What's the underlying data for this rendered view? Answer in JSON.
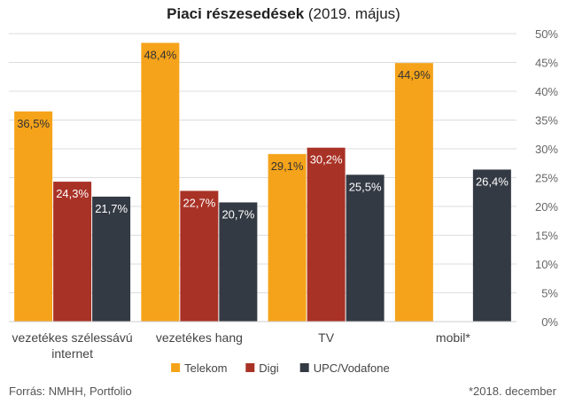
{
  "title_bold": "Piaci részesedések",
  "title_rest": " (2019. május)",
  "source": "Forrás: NMHH, Portfolio",
  "footnote": "*2018. december",
  "chart_data": {
    "type": "bar",
    "title": "Piaci részesedések (2019. május)",
    "categories": [
      [
        "vezetékes szélessávú",
        "internet"
      ],
      [
        "vezetékes hang"
      ],
      [
        "TV"
      ],
      [
        "mobil*"
      ]
    ],
    "series": [
      {
        "name": "Telekom",
        "color": "#f5a31a",
        "values": [
          36.5,
          48.4,
          29.1,
          44.9
        ],
        "labels": [
          "36,5%",
          "48,4%",
          "29,1%",
          "44,9%"
        ]
      },
      {
        "name": "Digi",
        "color": "#a93226",
        "values": [
          24.3,
          22.7,
          30.2,
          null
        ],
        "labels": [
          "24,3%",
          "22,7%",
          "30,2%",
          ""
        ]
      },
      {
        "name": "UPC/Vodafone",
        "color": "#343a44",
        "values": [
          21.7,
          20.7,
          25.5,
          26.4
        ],
        "labels": [
          "21,7%",
          "20,7%",
          "25,5%",
          "26,4%"
        ]
      }
    ],
    "ylim": [
      0,
      50
    ],
    "yticks": [
      0,
      5,
      10,
      15,
      20,
      25,
      30,
      35,
      40,
      45,
      50
    ],
    "ytick_labels": [
      "0%",
      "5%",
      "10%",
      "15%",
      "20%",
      "25%",
      "30%",
      "35%",
      "40%",
      "45%",
      "50%"
    ],
    "y_axis_side": "right",
    "grid": true,
    "legend_position": "bottom"
  }
}
